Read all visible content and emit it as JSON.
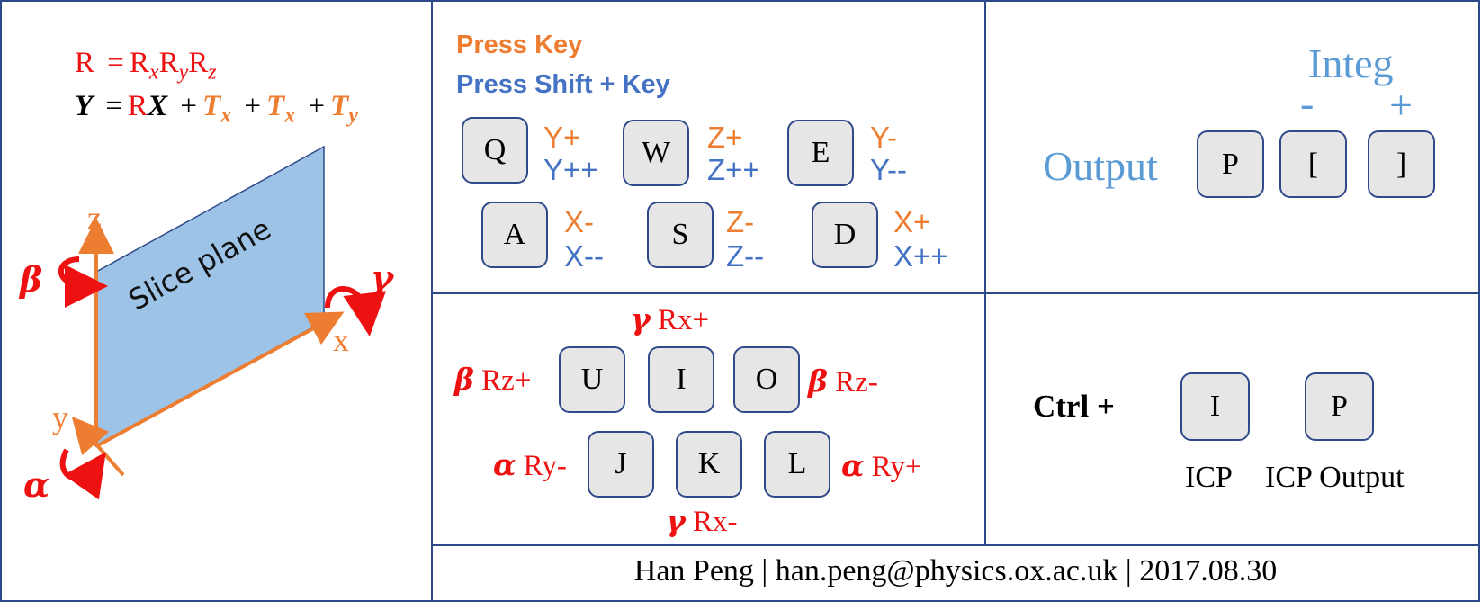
{
  "formula": {
    "line1": {
      "lhs": "R",
      "eq": "=",
      "r1": "R",
      "s1": "x",
      "r2": "R",
      "s2": "y",
      "r3": "R",
      "s3": "z"
    },
    "line2": {
      "y": "Y",
      "eq": "=",
      "r": "R",
      "x": "X",
      "plus": "+",
      "t": "T",
      "sx": "x",
      "sy": "y"
    }
  },
  "diagram": {
    "plane_label": "Slice plane",
    "axis_z": "z",
    "axis_x": "x",
    "axis_y": "y",
    "beta": "β",
    "gamma": "γ",
    "alpha": "α"
  },
  "translate": {
    "press_key": "Press Key",
    "press_shift": "Press Shift + Key",
    "keys": [
      {
        "key": "Q",
        "a": "Y+",
        "b": "Y++"
      },
      {
        "key": "W",
        "a": "Z+",
        "b": "Z++"
      },
      {
        "key": "E",
        "a": "Y-",
        "b": "Y--"
      },
      {
        "key": "A",
        "a": "X-",
        "b": "X--"
      },
      {
        "key": "S",
        "a": "Z-",
        "b": "Z--"
      },
      {
        "key": "D",
        "a": "X+",
        "b": "X++"
      }
    ]
  },
  "output": {
    "integ": "Integ",
    "minus": "-",
    "plus": "+",
    "label": "Output",
    "keys": [
      "P",
      "[",
      "]"
    ]
  },
  "rotate": {
    "keys": [
      "U",
      "I",
      "O",
      "J",
      "K",
      "L"
    ],
    "labels": {
      "top": {
        "g": "γ",
        "t": "Rx+"
      },
      "left_top": {
        "g": "β",
        "t": "Rz+"
      },
      "right_top": {
        "g": "β",
        "t": "Rz-"
      },
      "left_bottom": {
        "g": "α",
        "t": "Ry-"
      },
      "right_bottom": {
        "g": "α",
        "t": "Ry+"
      },
      "bottom": {
        "g": "γ",
        "t": "Rx-"
      }
    }
  },
  "ctrl": {
    "label": "Ctrl +",
    "keys": [
      "I",
      "P"
    ],
    "captions": [
      "ICP",
      "ICP Output"
    ]
  },
  "footer": "Han Peng | han.peng@physics.ox.ac.uk | 2017.08.30"
}
